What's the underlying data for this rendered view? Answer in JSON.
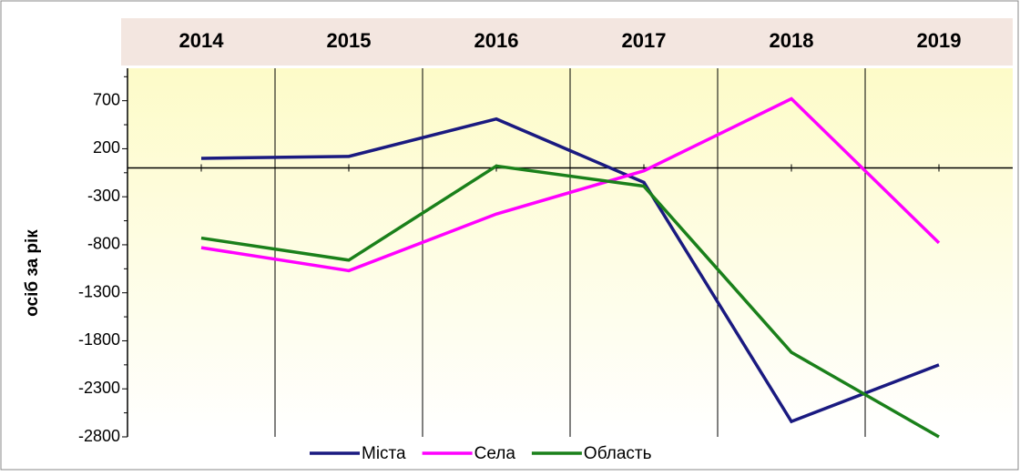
{
  "chart_data": {
    "type": "line",
    "y_axis_label": "осіб за рік",
    "categories": [
      "2014",
      "2015",
      "2016",
      "2017",
      "2018",
      "2019"
    ],
    "series": [
      {
        "name": "Міста",
        "color": "#1a1a80",
        "values": [
          100,
          120,
          510,
          -150,
          -2640,
          -2050
        ]
      },
      {
        "name": "Села",
        "color": "#ff00ff",
        "values": [
          -830,
          -1070,
          -480,
          -30,
          720,
          -780
        ]
      },
      {
        "name": "Область",
        "color": "#1a801a",
        "values": [
          -730,
          -960,
          20,
          -190,
          -1920,
          -2800
        ]
      }
    ],
    "ylim": [
      -2800,
      1000
    ],
    "yticks": [
      -2800,
      -2300,
      -1800,
      -1300,
      -800,
      -300,
      200,
      700
    ],
    "grid": true
  }
}
